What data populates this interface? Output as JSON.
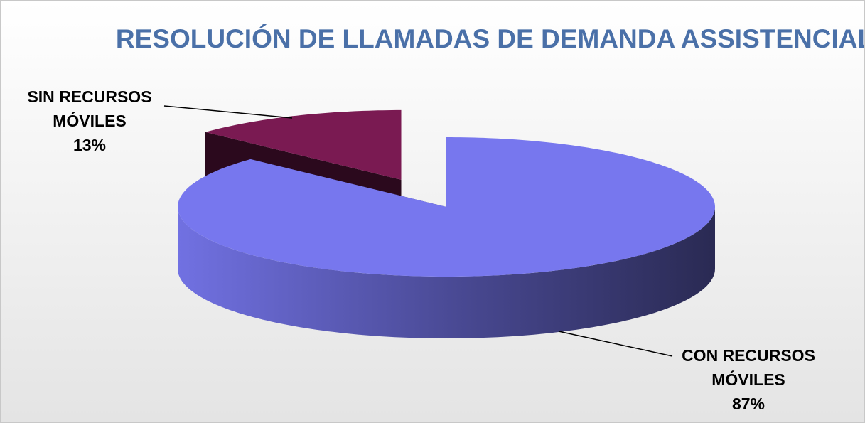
{
  "chart_data": {
    "type": "pie",
    "title": "RESOLUCIÓN DE LLAMADAS DE DEMANDA ASSISTENCIAL",
    "categories": [
      "CON RECURSOS MÓVILES",
      "SIN RECURSOS MÓVILES"
    ],
    "values": [
      87,
      13
    ],
    "value_labels": [
      "87%",
      "13%"
    ],
    "colors": [
      "#7777ee",
      "#7a1a52"
    ]
  }
}
